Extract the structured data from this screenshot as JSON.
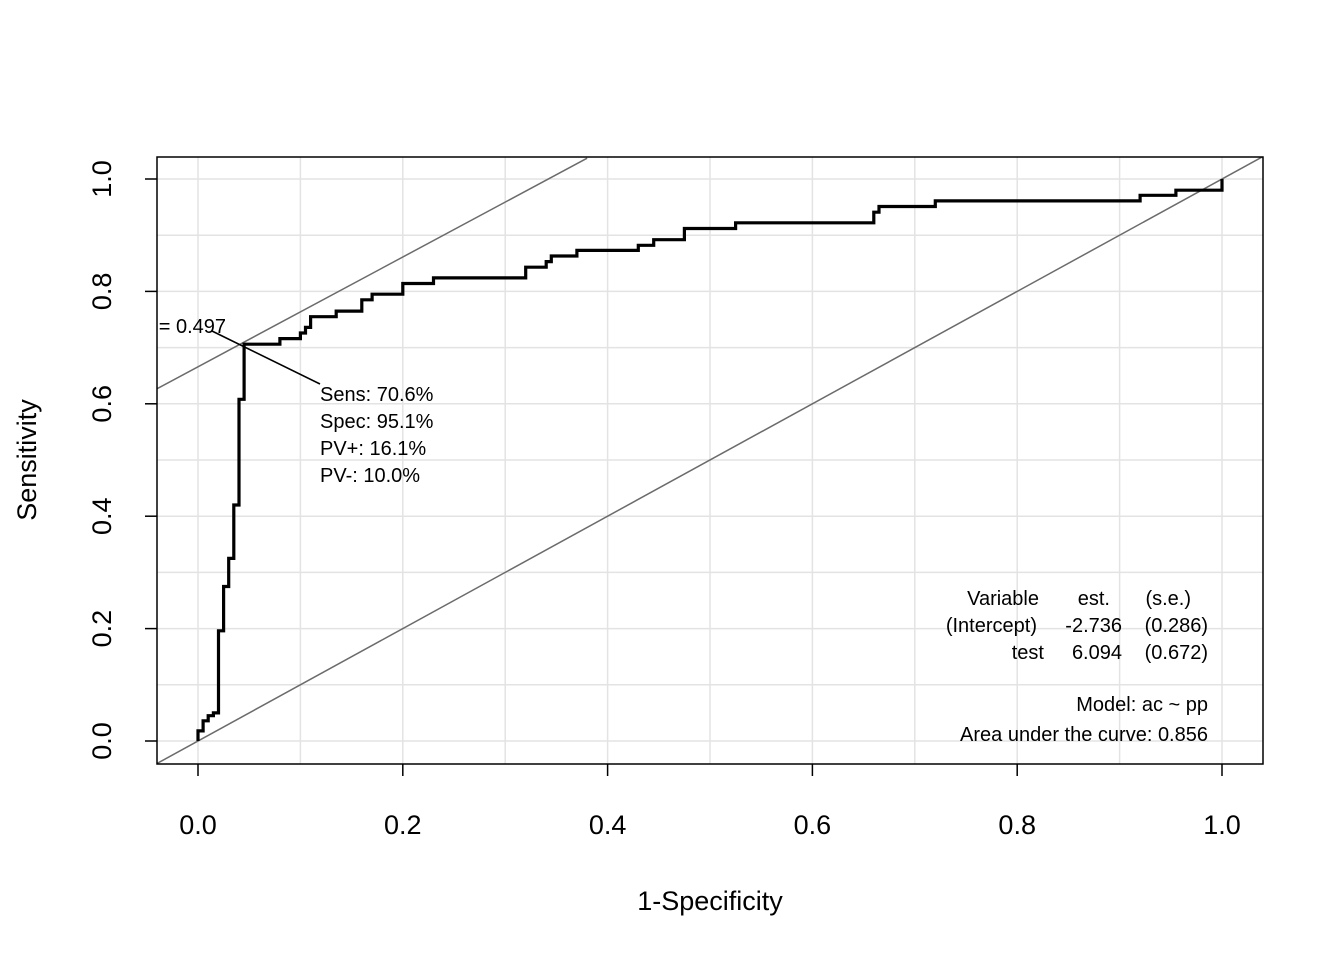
{
  "chart_data": {
    "type": "line",
    "xlabel": "1-Specificity",
    "ylabel": "Sensitivity",
    "xlim": [
      0,
      1
    ],
    "ylim": [
      0,
      1
    ],
    "x_ticks": [
      "0.0",
      "0.2",
      "0.4",
      "0.6",
      "0.8",
      "1.0"
    ],
    "y_ticks": [
      "0.0",
      "0.2",
      "0.4",
      "0.6",
      "0.8",
      "1.0"
    ],
    "grid": true,
    "roc_curve": {
      "x": [
        0,
        0,
        0.005,
        0.005,
        0.01,
        0.01,
        0.015,
        0.015,
        0.02,
        0.02,
        0.025,
        0.025,
        0.03,
        0.03,
        0.035,
        0.035,
        0.04,
        0.04,
        0.045,
        0.045,
        0.05,
        0.05,
        0.08,
        0.08,
        0.1,
        0.1,
        0.105,
        0.105,
        0.11,
        0.11,
        0.135,
        0.135,
        0.16,
        0.16,
        0.17,
        0.17,
        0.2,
        0.2,
        0.23,
        0.23,
        0.32,
        0.32,
        0.34,
        0.34,
        0.345,
        0.345,
        0.37,
        0.37,
        0.43,
        0.43,
        0.445,
        0.445,
        0.475,
        0.475,
        0.525,
        0.525,
        0.54,
        0.54,
        0.66,
        0.66,
        0.665,
        0.665,
        0.72,
        0.72,
        0.92,
        0.92,
        0.955,
        0.955,
        1,
        1
      ],
      "y": [
        0,
        0.018,
        0.018,
        0.036,
        0.036,
        0.045,
        0.045,
        0.05,
        0.05,
        0.196,
        0.196,
        0.275,
        0.275,
        0.325,
        0.325,
        0.42,
        0.42,
        0.608,
        0.608,
        0.706,
        0.706,
        0.706,
        0.706,
        0.716,
        0.716,
        0.726,
        0.726,
        0.736,
        0.736,
        0.755,
        0.755,
        0.765,
        0.765,
        0.785,
        0.785,
        0.795,
        0.795,
        0.814,
        0.814,
        0.824,
        0.824,
        0.843,
        0.843,
        0.853,
        0.853,
        0.863,
        0.863,
        0.873,
        0.873,
        0.882,
        0.882,
        0.892,
        0.892,
        0.912,
        0.912,
        0.922,
        0.922,
        0.922,
        0.922,
        0.941,
        0.941,
        0.951,
        0.951,
        0.961,
        0.961,
        0.971,
        0.971,
        0.98,
        0.98,
        1
      ]
    },
    "reference_lines": [
      {
        "x1": -0.05,
        "y1": -0.05,
        "x2": 1.1,
        "y2": 1.1
      },
      {
        "x1": -0.05,
        "y1": 0.617,
        "x2": 0.38,
        "y2": 1.037
      }
    ],
    "optimal_point": {
      "x": 0.049,
      "y": 0.706
    },
    "cutoff_label": "= 0.497",
    "point_stats": [
      "Sens: 70.6%",
      "Spec: 95.1%",
      "PV+: 16.1%",
      "PV-: 10.0%"
    ],
    "coef_table": {
      "header": {
        "variable": "Variable",
        "est": "est.",
        "se": "(s.e.)"
      },
      "rows": [
        {
          "variable": "(Intercept)",
          "est": "-2.736",
          "se": "(0.286)"
        },
        {
          "variable": "test",
          "est": "6.094",
          "se": "(0.672)"
        }
      ]
    },
    "model_label": "Model:  ac ~ pp",
    "auc_label": "Area under the curve: 0.856"
  }
}
